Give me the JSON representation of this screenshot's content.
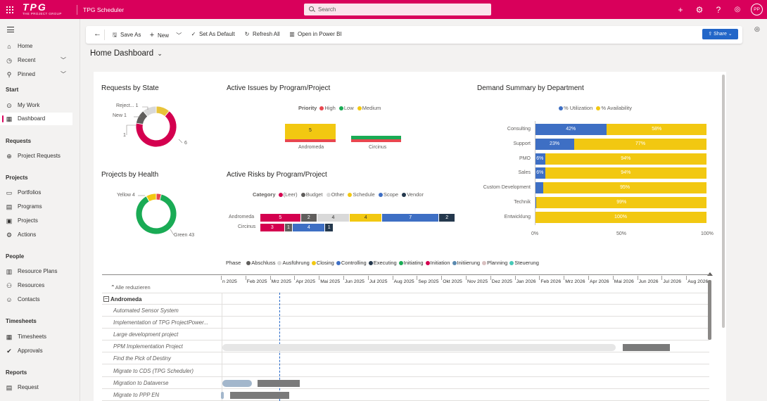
{
  "topbar": {
    "logo_text": "TPG",
    "logo_sub": "THE PROJECT GROUP",
    "app_title": "TPG Scheduler",
    "search_placeholder": "Search",
    "avatar_initials": "PP"
  },
  "sidebar": {
    "top_items": [
      {
        "label": "Home",
        "icon": "home-icon"
      },
      {
        "label": "Recent",
        "icon": "clock-icon"
      },
      {
        "label": "Pinned",
        "icon": "pin-icon"
      }
    ],
    "groups": {
      "start": "Start",
      "requests": "Requests",
      "projects": "Projects",
      "people": "People",
      "timesheets": "Timesheets",
      "reports": "Reports"
    },
    "start_items": [
      "My Work",
      "Dashboard"
    ],
    "requests_items": [
      "Project Requests"
    ],
    "projects_items": [
      "Portfolios",
      "Programs",
      "Projects",
      "Actions"
    ],
    "people_items": [
      "Resource Plans",
      "Resources",
      "Contacts"
    ],
    "timesheets_items": [
      "Timesheets",
      "Approvals"
    ],
    "reports_items": [
      "Request"
    ]
  },
  "commandbar": {
    "save_as": "Save As",
    "new": "New",
    "set_as_default": "Set As Default",
    "refresh_all": "Refresh All",
    "open_in_power_bi": "Open in Power BI",
    "share": "Share"
  },
  "page": {
    "title": "Home Dashboard"
  },
  "chart_data": [
    {
      "type": "pie",
      "title": "Requests by State",
      "slices": [
        {
          "label": "Reject...",
          "value": 1,
          "color": "#e8c33a"
        },
        {
          "label": "New",
          "value": 1,
          "color": "#d9d9d9"
        },
        {
          "label": "",
          "value": 1,
          "color": "#605e5c"
        },
        {
          "label": "",
          "value": 6,
          "color": "#d4004f"
        }
      ],
      "labels": [
        "Reject... 1",
        "New 1",
        "1",
        "6"
      ]
    },
    {
      "type": "pie",
      "title": "Projects by Health",
      "slices": [
        {
          "label": "Yellow",
          "value": 4,
          "color": "#f2c811"
        },
        {
          "label": "Red",
          "value": 2,
          "color": "#e8474f"
        },
        {
          "label": "Green",
          "value": 43,
          "color": "#1aab55"
        }
      ],
      "labels": [
        "Yellow 4",
        "Green 43"
      ]
    },
    {
      "type": "bar",
      "title": "Active Issues by Program/Project",
      "legend_title": "Priority",
      "legend": [
        {
          "name": "High",
          "color": "#e8474f"
        },
        {
          "name": "Low",
          "color": "#1aab55"
        },
        {
          "name": "Medium",
          "color": "#f2c811"
        }
      ],
      "categories": [
        "Andromeda",
        "Circinus"
      ],
      "series": [
        {
          "name": "Medium",
          "values": [
            5,
            0
          ]
        },
        {
          "name": "Low",
          "values": [
            0,
            1
          ]
        },
        {
          "name": "High",
          "values": [
            1,
            1
          ]
        }
      ],
      "data_labels": [
        "5"
      ]
    },
    {
      "type": "bar",
      "title": "Active Risks by Program/Project",
      "legend_title": "Category",
      "legend": [
        {
          "name": "(Leer)",
          "color": "#d4004f"
        },
        {
          "name": "Budget",
          "color": "#605e5c"
        },
        {
          "name": "Other",
          "color": "#d9d9d9"
        },
        {
          "name": "Schedule",
          "color": "#f2c811"
        },
        {
          "name": "Scope",
          "color": "#3e6fc4"
        },
        {
          "name": "Vendor",
          "color": "#24384d"
        }
      ],
      "categories": [
        "Andromeda",
        "Circinus"
      ],
      "series": [
        {
          "name": "(Leer)",
          "values": [
            5,
            3
          ]
        },
        {
          "name": "Budget",
          "values": [
            2,
            1
          ]
        },
        {
          "name": "Other",
          "values": [
            4,
            0
          ]
        },
        {
          "name": "Schedule",
          "values": [
            4,
            0
          ]
        },
        {
          "name": "Scope",
          "values": [
            7,
            4
          ]
        },
        {
          "name": "Vendor",
          "values": [
            2,
            1
          ]
        }
      ]
    },
    {
      "type": "bar",
      "title": "Demand Summary by Department",
      "legend": [
        {
          "name": "% Utilization",
          "color": "#3e6fc4"
        },
        {
          "name": "% Availability",
          "color": "#f2c811"
        }
      ],
      "categories": [
        "Consulting",
        "Support",
        "PMO",
        "Sales",
        "Custom Development",
        "Technik",
        "Entwicklung"
      ],
      "series": [
        {
          "name": "% Utilization",
          "values": [
            42,
            23,
            6,
            6,
            5,
            1,
            0
          ]
        },
        {
          "name": "% Availability",
          "values": [
            58,
            77,
            94,
            94,
            95,
            99,
            100
          ]
        }
      ],
      "util_labels": [
        "42%",
        "23%",
        "6%",
        "6%",
        "",
        "",
        ""
      ],
      "avail_labels": [
        "58%",
        "77%",
        "94%",
        "94%",
        "95%",
        "99%",
        "100%"
      ],
      "x_ticks": [
        "0%",
        "50%",
        "100%"
      ]
    }
  ],
  "gantt": {
    "legend_title": "Phase",
    "phases": [
      {
        "name": "Abschluss",
        "color": "#605e5c"
      },
      {
        "name": "Ausführung",
        "color": "#d9d9d9"
      },
      {
        "name": "Closing",
        "color": "#f2c811"
      },
      {
        "name": "Controlling",
        "color": "#3e6fc4"
      },
      {
        "name": "Executing",
        "color": "#24384d"
      },
      {
        "name": "Initiating",
        "color": "#1aab55"
      },
      {
        "name": "Initiation",
        "color": "#d4004f"
      },
      {
        "name": "Initiierung",
        "color": "#5b8ab0"
      },
      {
        "name": "Planning",
        "color": "#d9c0c0"
      },
      {
        "name": "Steuerung",
        "color": "#47c9b8"
      }
    ],
    "collapse_all": "Alle reduzieren",
    "months": [
      "n 2025",
      "Feb 2025",
      "Mrz 2025",
      "Apr 2025",
      "Mai 2025",
      "Jun 2025",
      "Jul 2025",
      "Aug 2025",
      "Sep 2025",
      "Okt 2025",
      "Nov 2025",
      "Dez 2025",
      "Jan 2026",
      "Feb 2026",
      "Mrz 2026",
      "Apr 2026",
      "Mai 2026",
      "Jun 2026",
      "Jul 2026",
      "Aug 2026"
    ],
    "group": "Andromeda",
    "rows": [
      "Automated Sensor System",
      "Implementation of TPG ProjectPower...",
      "Large development project",
      "PPM Implementation Project",
      "Find the Pick of Destiny",
      "Migrate to CDS (TPG Scheduler)",
      "Migration to Dataverse",
      "Migrate to PPP EN"
    ]
  }
}
